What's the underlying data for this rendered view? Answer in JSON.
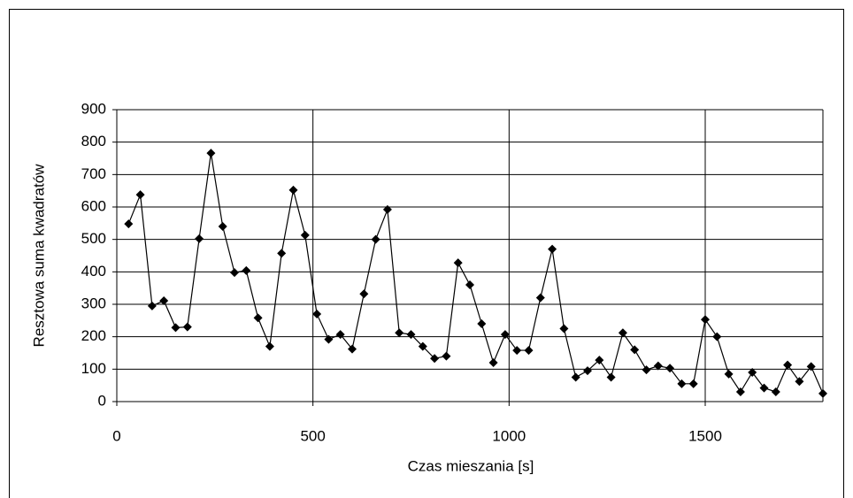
{
  "chart_data": {
    "type": "line",
    "x_label": "Czas mieszania [s]",
    "y_label": "Resztowa suma kwadratów",
    "x": [
      30,
      60,
      90,
      120,
      150,
      180,
      210,
      240,
      270,
      300,
      330,
      360,
      390,
      420,
      450,
      480,
      510,
      540,
      570,
      600,
      630,
      660,
      690,
      720,
      750,
      780,
      810,
      840,
      870,
      900,
      930,
      960,
      990,
      1020,
      1050,
      1080,
      1110,
      1140,
      1170,
      1200,
      1230,
      1260,
      1290,
      1320,
      1350,
      1380,
      1410,
      1440,
      1470,
      1500,
      1530,
      1560,
      1590,
      1620,
      1650,
      1680,
      1710,
      1740,
      1770,
      1800
    ],
    "series": [
      {
        "color": "#000000",
        "values": [
          548,
          638,
          295,
          311,
          228,
          230,
          502,
          766,
          540,
          398,
          404,
          258,
          170,
          457,
          652,
          513,
          270,
          192,
          207,
          162,
          332,
          500,
          592,
          212,
          207,
          170,
          133,
          140,
          428,
          360,
          240,
          120,
          207,
          158,
          158,
          320,
          470,
          225,
          75,
          95,
          128,
          75,
          212,
          160,
          98,
          110,
          103,
          55,
          55,
          253,
          200,
          85,
          30,
          90,
          42,
          30,
          113,
          62,
          108,
          25
        ]
      }
    ],
    "xlim": [
      0,
      1800
    ],
    "xticks": [
      0,
      500,
      1000,
      1500
    ],
    "ylim": [
      0,
      900
    ],
    "yticks": [
      0,
      100,
      200,
      300,
      400,
      500,
      600,
      700,
      800,
      900
    ],
    "grid": true
  }
}
